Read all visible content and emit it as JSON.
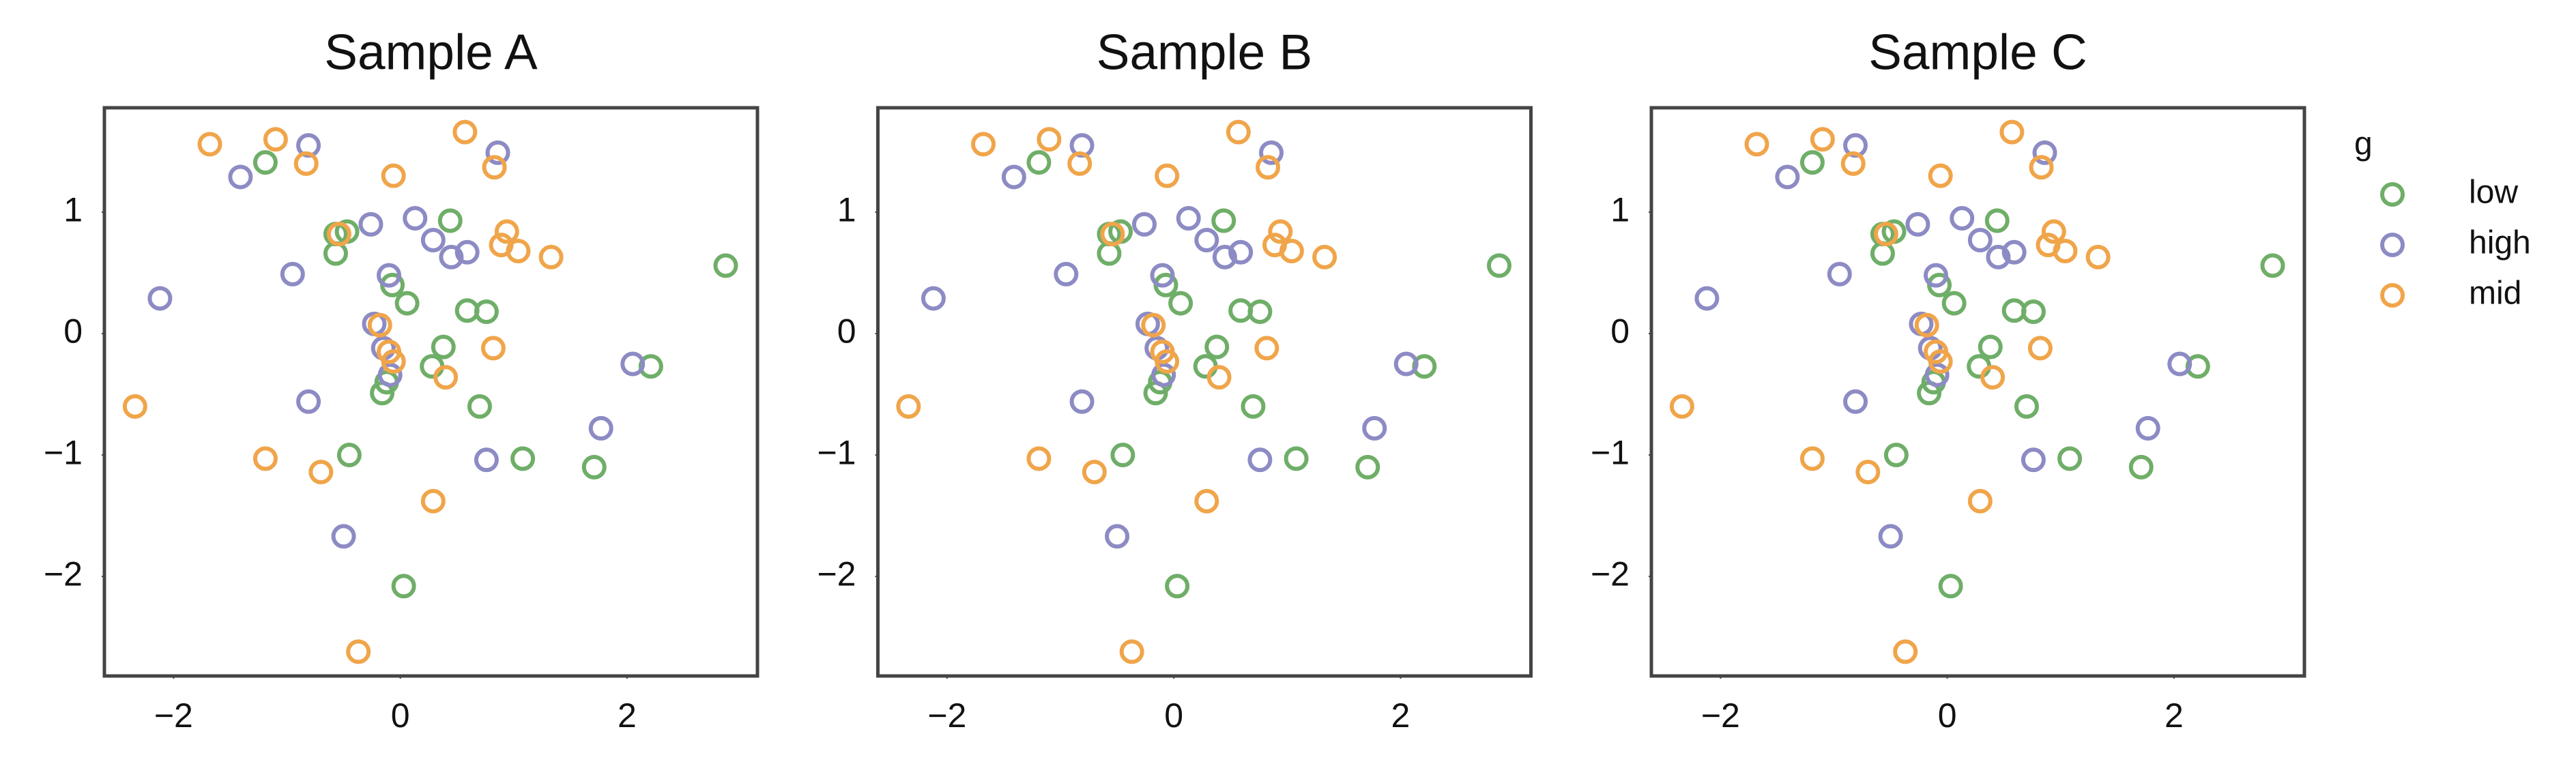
{
  "chart_data": [
    {
      "type": "scatter",
      "title": "Sample A",
      "xlim": [
        -2.61,
        3.15
      ],
      "ylim": [
        -2.82,
        1.86
      ],
      "xticks": [
        {
          "value": -2,
          "label": "−2"
        },
        0,
        2
      ],
      "yticks": [
        {
          "value": -2,
          "label": "−2"
        },
        {
          "value": -1,
          "label": "−1"
        },
        0,
        1
      ],
      "series": [
        {
          "name": "low",
          "color": "#6fae68",
          "x": [
            -1.19,
            -0.57,
            -0.47,
            -0.57,
            0.44,
            -0.07,
            0.06,
            0.59,
            0.76,
            0.38,
            0.28,
            -0.12,
            -0.16,
            0.7,
            -0.45,
            1.08,
            1.71,
            2.21,
            2.87,
            0.03
          ],
          "y": [
            1.41,
            0.82,
            0.84,
            0.66,
            0.93,
            0.4,
            0.25,
            0.19,
            0.18,
            -0.11,
            -0.27,
            -0.4,
            -0.49,
            -0.6,
            -1.0,
            -1.03,
            -1.1,
            -0.27,
            0.56,
            -2.08
          ]
        },
        {
          "name": "high",
          "color": "#8d8bc4",
          "x": [
            -0.81,
            -1.41,
            0.86,
            -0.26,
            0.13,
            0.29,
            0.45,
            0.59,
            -0.95,
            -0.1,
            -2.12,
            -0.23,
            -0.15,
            -0.09,
            -0.81,
            2.05,
            1.77,
            0.76,
            -0.5
          ],
          "y": [
            1.55,
            1.29,
            1.49,
            0.9,
            0.95,
            0.77,
            0.63,
            0.67,
            0.49,
            0.48,
            0.29,
            0.08,
            -0.12,
            -0.34,
            -0.56,
            -0.25,
            -0.78,
            -1.04,
            -1.67
          ]
        },
        {
          "name": "mid",
          "color": "#f0a54a",
          "x": [
            -1.68,
            -1.1,
            -0.83,
            0.57,
            0.83,
            -0.06,
            0.94,
            0.89,
            1.04,
            1.33,
            -0.54,
            -0.18,
            -0.1,
            -0.06,
            0.4,
            0.82,
            -2.34,
            -1.19,
            -0.7,
            0.29,
            -0.37
          ],
          "y": [
            1.56,
            1.6,
            1.4,
            1.66,
            1.37,
            1.3,
            0.84,
            0.73,
            0.68,
            0.63,
            0.82,
            0.07,
            -0.15,
            -0.23,
            -0.36,
            -0.12,
            -0.6,
            -1.03,
            -1.14,
            -1.38,
            -2.62
          ]
        }
      ]
    },
    {
      "type": "scatter",
      "title": "Sample B",
      "xlim": [
        -2.61,
        3.15
      ],
      "ylim": [
        -2.82,
        1.86
      ],
      "xticks": [
        {
          "value": -2,
          "label": "−2"
        },
        0,
        2
      ],
      "yticks": [
        {
          "value": -2,
          "label": "−2"
        },
        {
          "value": -1,
          "label": "−1"
        },
        0,
        1
      ],
      "series": [
        {
          "name": "low",
          "color": "#6fae68",
          "x": [
            -1.19,
            -0.57,
            -0.47,
            -0.57,
            0.44,
            -0.07,
            0.06,
            0.59,
            0.76,
            0.38,
            0.28,
            -0.12,
            -0.16,
            0.7,
            -0.45,
            1.08,
            1.71,
            2.21,
            2.87,
            0.03
          ],
          "y": [
            1.41,
            0.82,
            0.84,
            0.66,
            0.93,
            0.4,
            0.25,
            0.19,
            0.18,
            -0.11,
            -0.27,
            -0.4,
            -0.49,
            -0.6,
            -1.0,
            -1.03,
            -1.1,
            -0.27,
            0.56,
            -2.08
          ]
        },
        {
          "name": "high",
          "color": "#8d8bc4",
          "x": [
            -0.81,
            -1.41,
            0.86,
            -0.26,
            0.13,
            0.29,
            0.45,
            0.59,
            -0.95,
            -0.1,
            -2.12,
            -0.23,
            -0.15,
            -0.09,
            -0.81,
            2.05,
            1.77,
            0.76,
            -0.5
          ],
          "y": [
            1.55,
            1.29,
            1.49,
            0.9,
            0.95,
            0.77,
            0.63,
            0.67,
            0.49,
            0.48,
            0.29,
            0.08,
            -0.12,
            -0.34,
            -0.56,
            -0.25,
            -0.78,
            -1.04,
            -1.67
          ]
        },
        {
          "name": "mid",
          "color": "#f0a54a",
          "x": [
            -1.68,
            -1.1,
            -0.83,
            0.57,
            0.83,
            -0.06,
            0.94,
            0.89,
            1.04,
            1.33,
            -0.54,
            -0.18,
            -0.1,
            -0.06,
            0.4,
            0.82,
            -2.34,
            -1.19,
            -0.7,
            0.29,
            -0.37
          ],
          "y": [
            1.56,
            1.6,
            1.4,
            1.66,
            1.37,
            1.3,
            0.84,
            0.73,
            0.68,
            0.63,
            0.82,
            0.07,
            -0.15,
            -0.23,
            -0.36,
            -0.12,
            -0.6,
            -1.03,
            -1.14,
            -1.38,
            -2.62
          ]
        }
      ]
    },
    {
      "type": "scatter",
      "title": "Sample C",
      "xlim": [
        -2.61,
        3.15
      ],
      "ylim": [
        -2.82,
        1.86
      ],
      "xticks": [
        {
          "value": -2,
          "label": "−2"
        },
        0,
        2
      ],
      "yticks": [
        {
          "value": -2,
          "label": "−2"
        },
        {
          "value": -1,
          "label": "−1"
        },
        0,
        1
      ],
      "legend_title": "g",
      "series": [
        {
          "name": "low",
          "color": "#6fae68",
          "x": [
            -1.19,
            -0.57,
            -0.47,
            -0.57,
            0.44,
            -0.07,
            0.06,
            0.59,
            0.76,
            0.38,
            0.28,
            -0.12,
            -0.16,
            0.7,
            -0.45,
            1.08,
            1.71,
            2.21,
            2.87,
            0.03
          ],
          "y": [
            1.41,
            0.82,
            0.84,
            0.66,
            0.93,
            0.4,
            0.25,
            0.19,
            0.18,
            -0.11,
            -0.27,
            -0.4,
            -0.49,
            -0.6,
            -1.0,
            -1.03,
            -1.1,
            -0.27,
            0.56,
            -2.08
          ]
        },
        {
          "name": "high",
          "color": "#8d8bc4",
          "x": [
            -0.81,
            -1.41,
            0.86,
            -0.26,
            0.13,
            0.29,
            0.45,
            0.59,
            -0.95,
            -0.1,
            -2.12,
            -0.23,
            -0.15,
            -0.09,
            -0.81,
            2.05,
            1.77,
            0.76,
            -0.5
          ],
          "y": [
            1.55,
            1.29,
            1.49,
            0.9,
            0.95,
            0.77,
            0.63,
            0.67,
            0.49,
            0.48,
            0.29,
            0.08,
            -0.12,
            -0.34,
            -0.56,
            -0.25,
            -0.78,
            -1.04,
            -1.67
          ]
        },
        {
          "name": "mid",
          "color": "#f0a54a",
          "x": [
            -1.68,
            -1.1,
            -0.83,
            0.57,
            0.83,
            -0.06,
            0.94,
            0.89,
            1.04,
            1.33,
            -0.54,
            -0.18,
            -0.1,
            -0.06,
            0.4,
            0.82,
            -2.34,
            -1.19,
            -0.7,
            0.29,
            -0.37
          ],
          "y": [
            1.56,
            1.6,
            1.4,
            1.66,
            1.37,
            1.3,
            0.84,
            0.73,
            0.68,
            0.63,
            0.82,
            0.07,
            -0.15,
            -0.23,
            -0.36,
            -0.12,
            -0.6,
            -1.03,
            -1.14,
            -1.38,
            -2.62
          ]
        }
      ]
    }
  ]
}
